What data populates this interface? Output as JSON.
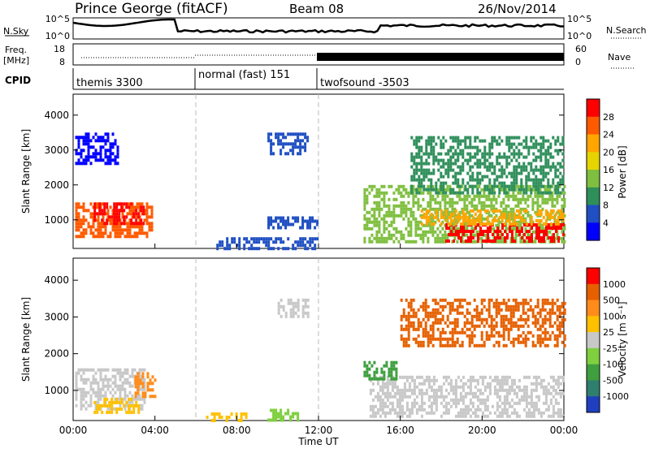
{
  "header": {
    "station": "Prince George (fitACF)",
    "beam": "Beam 08",
    "date": "26/Nov/2014"
  },
  "panels": {
    "nsky": {
      "left_label": "N.Sky",
      "right_label": "N.Search",
      "left_ticks": [
        "10^5",
        "10^0"
      ],
      "right_ticks": [
        "10^5",
        "10^0"
      ]
    },
    "freq": {
      "left_label_1": "Freq.",
      "left_label_2": "[MHz]",
      "left_ticks": [
        "18",
        "8"
      ],
      "right_label": "Nave",
      "right_ticks": [
        "60",
        "0"
      ]
    },
    "cpid": {
      "label": "CPID",
      "segments": [
        {
          "name": "themis 3300",
          "start": 0,
          "end": 6
        },
        {
          "name": "normal (fast) 151",
          "start": 6,
          "end": 12
        },
        {
          "name": "twofsound -3503",
          "start": 12,
          "end": 24
        }
      ]
    }
  },
  "chart_data": [
    {
      "type": "heatmap",
      "panel": "power",
      "ylabel": "Slant Range [km]",
      "yticks": [
        "1000",
        "2000",
        "3000",
        "4000"
      ],
      "ylim": [
        180,
        4600
      ],
      "colorbar_label": "Power [dB]",
      "colorbar_ticks": [
        "4",
        "8",
        "12",
        "16",
        "20",
        "24",
        "28"
      ],
      "colors": [
        "#0000ff",
        "#1f4fc2",
        "#2f8f5b",
        "#7fbf3f",
        "#e6d400",
        "#ffa500",
        "#ff5a00",
        "#ff0000"
      ],
      "patches": [
        {
          "t0": 0.1,
          "t1": 3.8,
          "r0": 500,
          "r1": 1500,
          "level": 6
        },
        {
          "t0": 1.0,
          "t1": 3.5,
          "r0": 900,
          "r1": 1500,
          "level": 7
        },
        {
          "t0": 14.2,
          "t1": 24,
          "r0": 400,
          "r1": 2000,
          "level": 3
        },
        {
          "t0": 18.2,
          "t1": 24,
          "r0": 400,
          "r1": 900,
          "level": 7
        },
        {
          "t0": 17.0,
          "t1": 24,
          "r0": 900,
          "r1": 1300,
          "level": 5
        },
        {
          "t0": 16.5,
          "t1": 24,
          "r0": 1800,
          "r1": 3400,
          "level": 2
        },
        {
          "t0": 9.5,
          "t1": 11.5,
          "r0": 2900,
          "r1": 3500,
          "level": 1
        },
        {
          "t0": 7.0,
          "t1": 12.0,
          "r0": 200,
          "r1": 500,
          "level": 1
        },
        {
          "t0": 9.5,
          "t1": 12.0,
          "r0": 800,
          "r1": 1100,
          "level": 1
        },
        {
          "t0": 0.1,
          "t1": 2.2,
          "r0": 2600,
          "r1": 3500,
          "level": 0
        }
      ]
    },
    {
      "type": "heatmap",
      "panel": "velocity",
      "ylabel": "Slant Range [km]",
      "xlabel": "Time UT",
      "xticks": [
        "00:00",
        "04:00",
        "08:00",
        "12:00",
        "16:00",
        "20:00",
        "00:00"
      ],
      "xlim": [
        0,
        24
      ],
      "yticks": [
        "1000",
        "2000",
        "3000",
        "4000"
      ],
      "ylim": [
        180,
        4600
      ],
      "colorbar_label": "Velocity [m s⁻¹]",
      "colorbar_ticks": [
        "1000",
        "500",
        "100",
        "25",
        "-25",
        "-100",
        "-500",
        "-1000"
      ],
      "colors": [
        "#1f3fbf",
        "#2f7f6f",
        "#3f9f3f",
        "#7fcf3f",
        "#c8c8c8",
        "#ffc000",
        "#ff8c1a",
        "#e66000",
        "#ff0000"
      ],
      "patches": [
        {
          "t0": 0.1,
          "t1": 3.5,
          "r0": 500,
          "r1": 1600,
          "level": 4
        },
        {
          "t0": 1.0,
          "t1": 3.2,
          "r0": 400,
          "r1": 800,
          "level": 5
        },
        {
          "t0": 3.0,
          "t1": 4.0,
          "r0": 800,
          "r1": 1500,
          "level": 6
        },
        {
          "t0": 14.5,
          "t1": 24,
          "r0": 300,
          "r1": 1400,
          "level": 4
        },
        {
          "t0": 14.2,
          "t1": 15.8,
          "r0": 1300,
          "r1": 1800,
          "level": 2
        },
        {
          "t0": 16.0,
          "t1": 24,
          "r0": 2200,
          "r1": 3500,
          "level": 7
        },
        {
          "t0": 9.5,
          "t1": 11.0,
          "r0": 200,
          "r1": 500,
          "level": 3
        },
        {
          "t0": 6.5,
          "t1": 8.5,
          "r0": 200,
          "r1": 400,
          "level": 5
        },
        {
          "t0": 10.0,
          "t1": 11.5,
          "r0": 3000,
          "r1": 3500,
          "level": 4
        }
      ]
    }
  ]
}
